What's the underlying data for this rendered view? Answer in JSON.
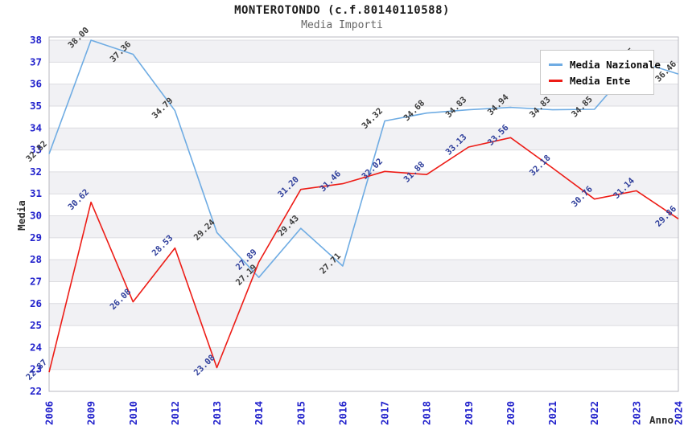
{
  "chart_data": {
    "type": "line",
    "title": "MONTEROTONDO (c.f.80140110588)",
    "subtitle": "Media Importi",
    "xlabel": "Anno",
    "ylabel": "Media",
    "ylim": [
      22,
      38
    ],
    "y_tick_step": 1,
    "categories": [
      "2006",
      "2009",
      "2010",
      "2012",
      "2013",
      "2014",
      "2015",
      "2016",
      "2017",
      "2018",
      "2019",
      "2020",
      "2021",
      "2022",
      "2023",
      "2024"
    ],
    "series": [
      {
        "name": "Media Nazionale",
        "color": "#6FACE3",
        "label_color": "#3c3c3c",
        "values": [
          32.82,
          38.0,
          37.36,
          34.79,
          29.24,
          27.19,
          29.43,
          27.71,
          34.32,
          34.68,
          34.83,
          34.94,
          34.83,
          34.85,
          37.05,
          36.46
        ]
      },
      {
        "name": "Media Ente",
        "color": "#ED1C16",
        "label_color": "#2e3e9b",
        "values": [
          22.87,
          30.62,
          26.08,
          28.53,
          23.08,
          27.89,
          31.2,
          31.46,
          32.02,
          31.88,
          33.13,
          33.56,
          32.18,
          30.76,
          31.14,
          29.86
        ]
      }
    ],
    "legend_position": "top-right",
    "grid": "horizontal-bands",
    "styles": {
      "band_fill": "#f1f1f4",
      "grid_line": "#dcdce0",
      "plot_border": "#b9b9c0",
      "tick_label_color": "#2222cc",
      "axis_title_color": "#2e2e2e",
      "background": "#ffffff"
    }
  }
}
